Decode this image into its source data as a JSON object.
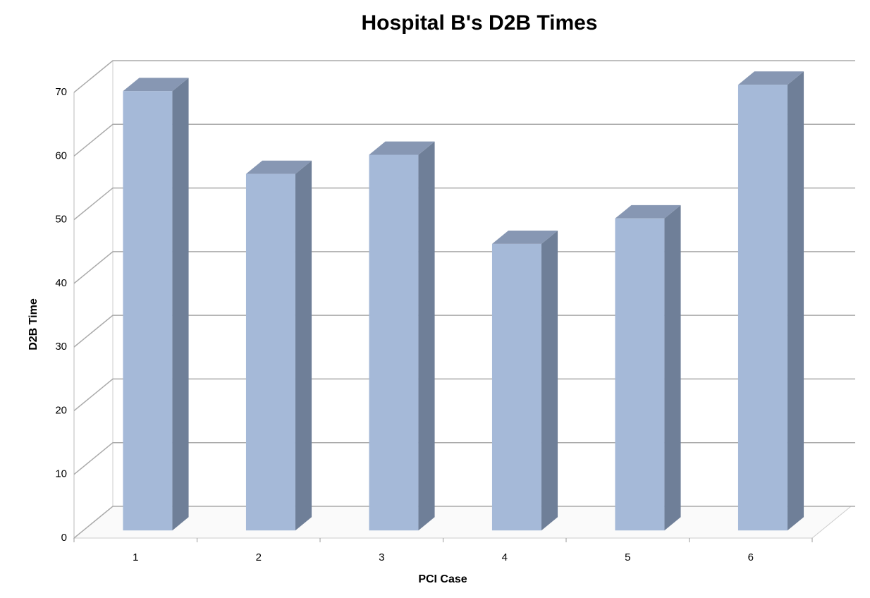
{
  "chart_data": {
    "type": "bar",
    "title": "Hospital B's D2B Times",
    "x_label": "PCI Case",
    "y_label": "D2B Time",
    "categories": [
      "1",
      "2",
      "3",
      "4",
      "5",
      "6"
    ],
    "values": [
      69,
      56,
      59,
      45,
      49,
      70
    ],
    "color": "#a5b9d8",
    "ylim": [
      0,
      70
    ],
    "yticks": [
      0,
      10,
      20,
      30,
      40,
      50,
      60,
      70
    ],
    "grid": true
  }
}
